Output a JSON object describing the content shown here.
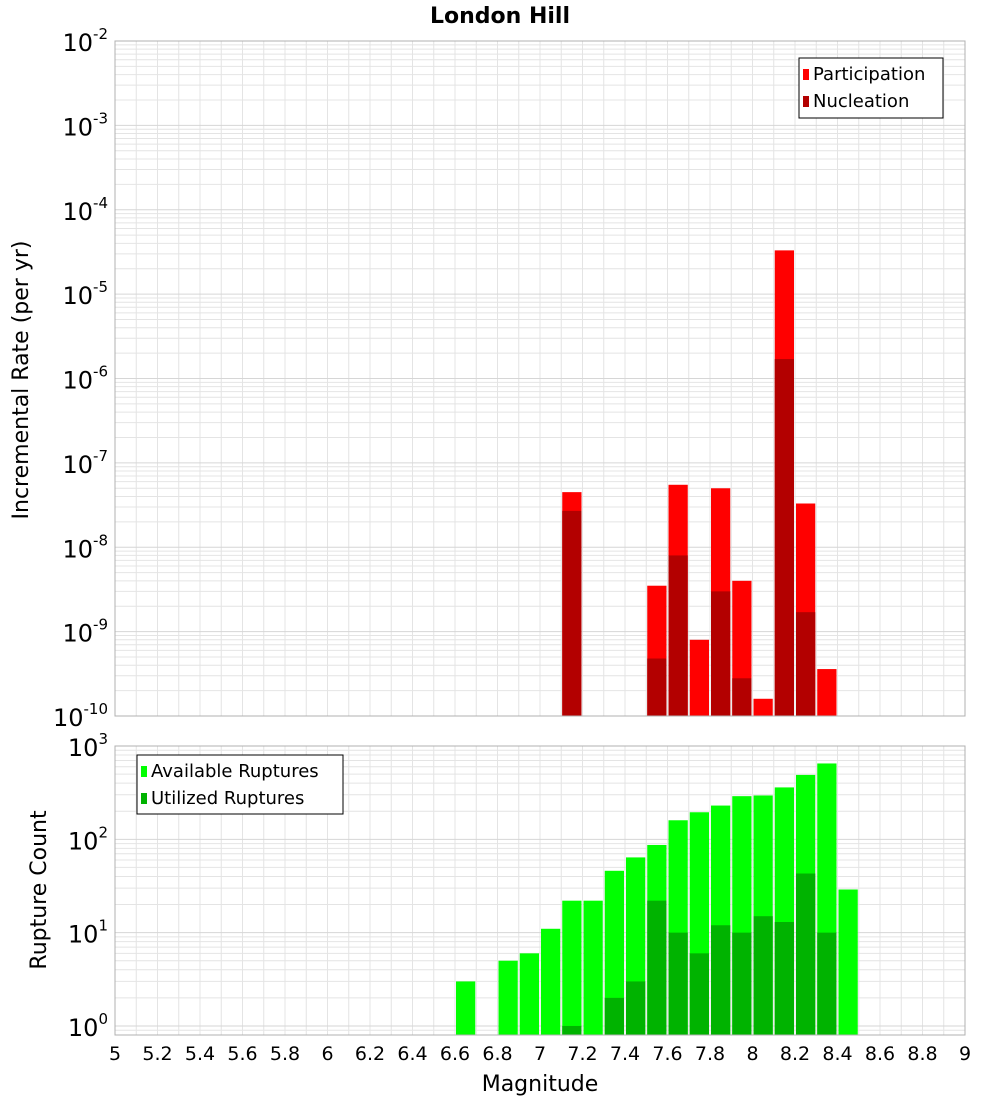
{
  "title": "London Hill",
  "x_axis_label": "Magnitude",
  "x_tick_labels": [
    "5",
    "5.2",
    "5.4",
    "5.6",
    "5.8",
    "6",
    "6.2",
    "6.4",
    "6.6",
    "6.8",
    "7",
    "7.2",
    "7.4",
    "7.6",
    "7.8",
    "8",
    "8.2",
    "8.4",
    "8.6",
    "8.8",
    "9"
  ],
  "colors": {
    "participation": "#ff0000",
    "nucleation": "#b30000",
    "available": "#00ff00",
    "utilized": "#00b300",
    "grid": "#e4e4e4",
    "frame": "#b0b0b0"
  },
  "chart_data": [
    {
      "type": "bar",
      "title": "London Hill",
      "ylabel": "Incremental Rate (per yr)",
      "xlabel": "",
      "xlim": [
        5,
        9
      ],
      "ylim": [
        1e-10,
        0.01
      ],
      "yscale": "log",
      "bar_width": 0.1,
      "legend_position": "top-right",
      "y_tick_labels": [
        {
          "base": "10",
          "exp": "-2",
          "value": 0.01
        },
        {
          "base": "10",
          "exp": "-3",
          "value": 0.001
        },
        {
          "base": "10",
          "exp": "-4",
          "value": 0.0001
        },
        {
          "base": "10",
          "exp": "-5",
          "value": 1e-05
        },
        {
          "base": "10",
          "exp": "-6",
          "value": 1e-06
        },
        {
          "base": "10",
          "exp": "-7",
          "value": 1e-07
        },
        {
          "base": "10",
          "exp": "-8",
          "value": 1e-08
        },
        {
          "base": "10",
          "exp": "-9",
          "value": 1e-09
        },
        {
          "base": "10",
          "exp": "-10",
          "value": 1e-10
        }
      ],
      "series": [
        {
          "name": "Participation",
          "x": [
            7.15,
            7.55,
            7.65,
            7.75,
            7.85,
            7.95,
            8.05,
            8.15,
            8.25,
            8.35
          ],
          "values": [
            4.5e-08,
            3.5e-09,
            5.5e-08,
            8e-10,
            5e-08,
            4e-09,
            1.6e-10,
            3.3e-05,
            3.3e-08,
            3.6e-10
          ]
        },
        {
          "name": "Nucleation",
          "x": [
            7.15,
            7.55,
            7.65,
            7.85,
            7.95,
            8.15,
            8.25
          ],
          "values": [
            2.7e-08,
            4.8e-10,
            8e-09,
            3e-09,
            2.8e-10,
            1.7e-06,
            1.7e-09
          ]
        }
      ]
    },
    {
      "type": "bar",
      "title": "",
      "ylabel": "Rupture Count",
      "xlabel": "Magnitude",
      "xlim": [
        5,
        9
      ],
      "ylim": [
        0.8,
        1000
      ],
      "yscale": "log",
      "bar_width": 0.1,
      "legend_position": "top-left",
      "y_tick_labels": [
        {
          "base": "10",
          "exp": "3",
          "value": 1000
        },
        {
          "base": "10",
          "exp": "2",
          "value": 100
        },
        {
          "base": "10",
          "exp": "1",
          "value": 10
        },
        {
          "base": "10",
          "exp": "0",
          "value": 1
        }
      ],
      "series": [
        {
          "name": "Available Ruptures",
          "x": [
            6.65,
            6.85,
            6.95,
            7.05,
            7.15,
            7.25,
            7.35,
            7.45,
            7.55,
            7.65,
            7.75,
            7.85,
            7.95,
            8.05,
            8.15,
            8.25,
            8.35,
            8.45
          ],
          "values": [
            3,
            5,
            6,
            11,
            22,
            22,
            46,
            64,
            87,
            160,
            195,
            230,
            290,
            295,
            360,
            490,
            650,
            29
          ]
        },
        {
          "name": "Utilized Ruptures",
          "x": [
            7.15,
            7.35,
            7.45,
            7.55,
            7.65,
            7.75,
            7.85,
            7.95,
            8.05,
            8.15,
            8.25,
            8.35
          ],
          "values": [
            1,
            2,
            3,
            22,
            10,
            6,
            12,
            10,
            15,
            13,
            43,
            10
          ]
        }
      ]
    }
  ]
}
